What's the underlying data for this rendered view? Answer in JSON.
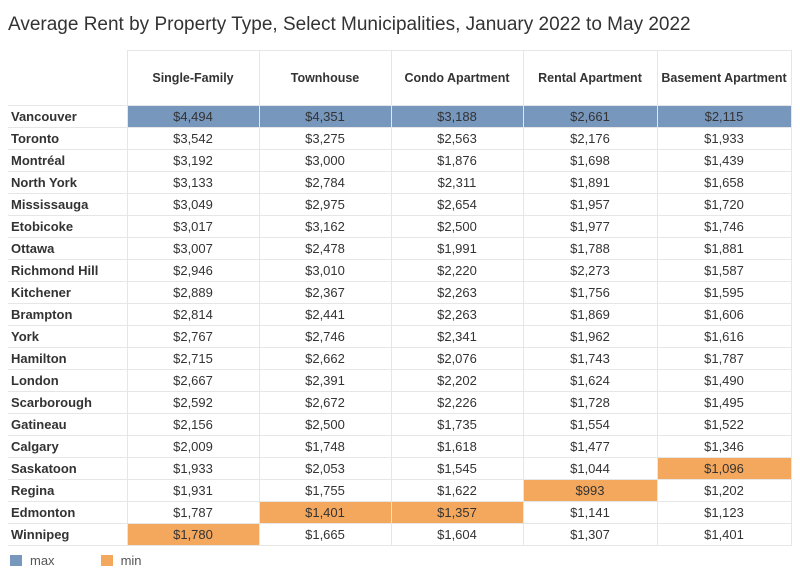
{
  "title": "Average Rent by Property Type, Select Municipalities, January 2022 to May 2022",
  "legend": [
    {
      "label": "max",
      "color": "#7797bd"
    },
    {
      "label": "min",
      "color": "#f4a85e"
    }
  ],
  "chart_data": {
    "type": "table",
    "title": "Average Rent by Property Type, Select Municipalities, January 2022 to May 2022",
    "columns": [
      "Single-Family",
      "Townhouse",
      "Condo Apartment",
      "Rental Apartment",
      "Basement Apartment"
    ],
    "rows": [
      {
        "name": "Vancouver",
        "values": [
          "$4,494",
          "$4,351",
          "$3,188",
          "$2,661",
          "$2,115"
        ]
      },
      {
        "name": "Toronto",
        "values": [
          "$3,542",
          "$3,275",
          "$2,563",
          "$2,176",
          "$1,933"
        ]
      },
      {
        "name": "Montréal",
        "values": [
          "$3,192",
          "$3,000",
          "$1,876",
          "$1,698",
          "$1,439"
        ]
      },
      {
        "name": "North York",
        "values": [
          "$3,133",
          "$2,784",
          "$2,311",
          "$1,891",
          "$1,658"
        ]
      },
      {
        "name": "Mississauga",
        "values": [
          "$3,049",
          "$2,975",
          "$2,654",
          "$1,957",
          "$1,720"
        ]
      },
      {
        "name": "Etobicoke",
        "values": [
          "$3,017",
          "$3,162",
          "$2,500",
          "$1,977",
          "$1,746"
        ]
      },
      {
        "name": "Ottawa",
        "values": [
          "$3,007",
          "$2,478",
          "$1,991",
          "$1,788",
          "$1,881"
        ]
      },
      {
        "name": "Richmond Hill",
        "values": [
          "$2,946",
          "$3,010",
          "$2,220",
          "$2,273",
          "$1,587"
        ]
      },
      {
        "name": "Kitchener",
        "values": [
          "$2,889",
          "$2,367",
          "$2,263",
          "$1,756",
          "$1,595"
        ]
      },
      {
        "name": "Brampton",
        "values": [
          "$2,814",
          "$2,441",
          "$2,263",
          "$1,869",
          "$1,606"
        ]
      },
      {
        "name": "York",
        "values": [
          "$2,767",
          "$2,746",
          "$2,341",
          "$1,962",
          "$1,616"
        ]
      },
      {
        "name": "Hamilton",
        "values": [
          "$2,715",
          "$2,662",
          "$2,076",
          "$1,743",
          "$1,787"
        ]
      },
      {
        "name": "London",
        "values": [
          "$2,667",
          "$2,391",
          "$2,202",
          "$1,624",
          "$1,490"
        ]
      },
      {
        "name": "Scarborough",
        "values": [
          "$2,592",
          "$2,672",
          "$2,226",
          "$1,728",
          "$1,495"
        ]
      },
      {
        "name": "Gatineau",
        "values": [
          "$2,156",
          "$2,500",
          "$1,735",
          "$1,554",
          "$1,522"
        ]
      },
      {
        "name": "Calgary",
        "values": [
          "$2,009",
          "$1,748",
          "$1,618",
          "$1,477",
          "$1,346"
        ]
      },
      {
        "name": "Saskatoon",
        "values": [
          "$1,933",
          "$2,053",
          "$1,545",
          "$1,044",
          "$1,096"
        ]
      },
      {
        "name": "Regina",
        "values": [
          "$1,931",
          "$1,755",
          "$1,622",
          "$993",
          "$1,202"
        ]
      },
      {
        "name": "Edmonton",
        "values": [
          "$1,787",
          "$1,401",
          "$1,357",
          "$1,141",
          "$1,123"
        ]
      },
      {
        "name": "Winnipeg",
        "values": [
          "$1,780",
          "$1,665",
          "$1,604",
          "$1,307",
          "$1,401"
        ]
      }
    ],
    "highlights": {
      "max": [
        [
          0,
          0
        ],
        [
          0,
          1
        ],
        [
          0,
          2
        ],
        [
          0,
          3
        ],
        [
          0,
          4
        ]
      ],
      "min": [
        [
          19,
          0
        ],
        [
          18,
          1
        ],
        [
          18,
          2
        ],
        [
          17,
          3
        ],
        [
          16,
          4
        ]
      ]
    }
  }
}
